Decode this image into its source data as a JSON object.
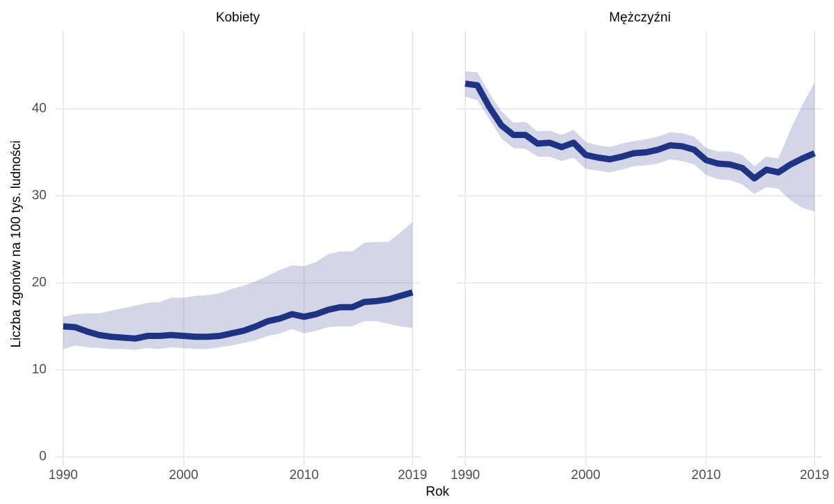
{
  "chart_data": {
    "type": "line",
    "x_label": "Rok",
    "y_label": "Liczba zgonów na 100 tys. ludności",
    "x": [
      1990,
      1991,
      1992,
      1993,
      1994,
      1995,
      1996,
      1997,
      1998,
      1999,
      2000,
      2001,
      2002,
      2003,
      2004,
      2005,
      2006,
      2007,
      2008,
      2009,
      2010,
      2011,
      2012,
      2013,
      2014,
      2015,
      2016,
      2017,
      2018,
      2019
    ],
    "xlim": [
      1990,
      2019
    ],
    "xticks": [
      1990,
      2000,
      2010,
      2019
    ],
    "ylim": [
      0,
      49
    ],
    "yticks": [
      0,
      10,
      20,
      30,
      40
    ],
    "grid": true,
    "panels": [
      {
        "title": "Kobiety",
        "series": [
          {
            "color": "#1f3385",
            "values": [
              15.0,
              14.9,
              14.4,
              14.0,
              13.8,
              13.7,
              13.6,
              13.9,
              13.9,
              14.0,
              13.9,
              13.8,
              13.8,
              13.9,
              14.2,
              14.5,
              15.0,
              15.6,
              15.9,
              16.4,
              16.1,
              16.4,
              16.9,
              17.2,
              17.2,
              17.8,
              17.9,
              18.1,
              18.5,
              18.9
            ],
            "lower": [
              12.4,
              12.8,
              12.6,
              12.5,
              12.4,
              12.4,
              12.3,
              12.5,
              12.4,
              12.6,
              12.5,
              12.4,
              12.4,
              12.6,
              12.8,
              13.1,
              13.4,
              13.9,
              14.2,
              14.7,
              14.2,
              14.5,
              14.9,
              15.0,
              15.0,
              15.6,
              15.6,
              15.3,
              15.0,
              14.8
            ],
            "upper": [
              16.1,
              16.4,
              16.5,
              16.5,
              16.8,
              17.1,
              17.4,
              17.7,
              17.8,
              18.3,
              18.3,
              18.5,
              18.6,
              18.8,
              19.3,
              19.7,
              20.2,
              20.8,
              21.5,
              22.0,
              21.9,
              22.4,
              23.3,
              23.6,
              23.6,
              24.6,
              24.7,
              24.7,
              25.8,
              27.0
            ]
          }
        ]
      },
      {
        "title": "Mężczyźni",
        "series": [
          {
            "color": "#1f3385",
            "values": [
              42.9,
              42.7,
              40.2,
              38.1,
              37.0,
              37.0,
              36.0,
              36.1,
              35.6,
              36.1,
              34.7,
              34.4,
              34.2,
              34.5,
              34.9,
              35.0,
              35.3,
              35.8,
              35.7,
              35.3,
              34.1,
              33.7,
              33.6,
              33.2,
              32.0,
              33.0,
              32.7,
              33.6,
              34.3,
              34.9
            ],
            "lower": [
              41.4,
              41.0,
              38.8,
              36.6,
              35.5,
              35.4,
              34.5,
              34.5,
              34.0,
              34.4,
              33.1,
              32.9,
              32.7,
              33.0,
              33.4,
              33.5,
              33.7,
              34.2,
              34.0,
              33.6,
              32.4,
              31.9,
              31.8,
              31.3,
              30.2,
              31.0,
              30.8,
              29.5,
              28.6,
              28.2
            ],
            "upper": [
              44.3,
              44.2,
              41.8,
              39.7,
              38.4,
              38.5,
              37.4,
              37.5,
              37.0,
              37.6,
              36.2,
              35.8,
              35.6,
              36.0,
              36.3,
              36.5,
              36.8,
              37.3,
              37.2,
              36.8,
              35.5,
              35.1,
              35.1,
              34.7,
              33.4,
              34.5,
              34.3,
              37.6,
              40.5,
              43.0
            ]
          }
        ]
      }
    ]
  }
}
